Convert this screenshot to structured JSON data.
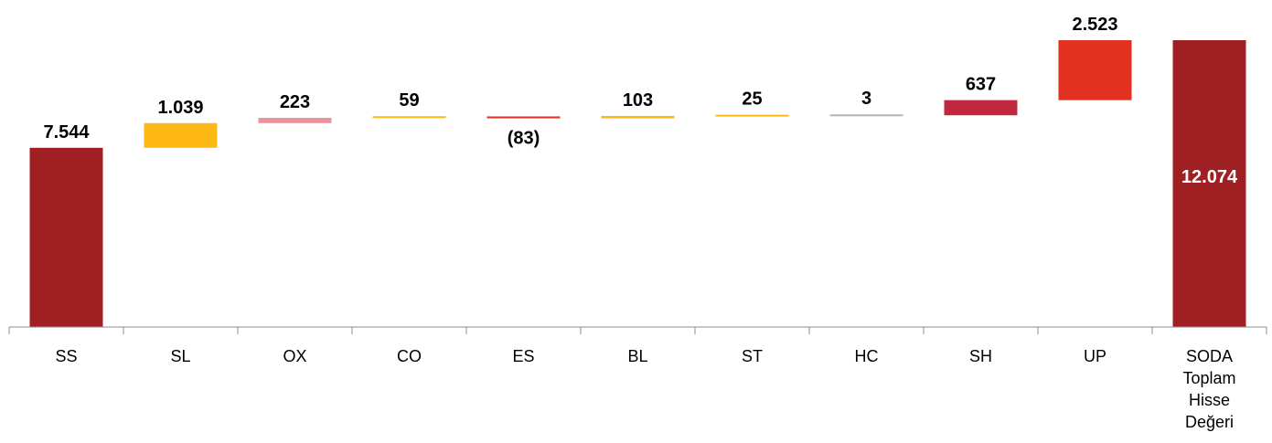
{
  "chart_data": {
    "type": "waterfall",
    "title": "",
    "xlabel": "",
    "ylabel": "",
    "categories": [
      "SS",
      "SL",
      "OX",
      "CO",
      "ES",
      "BL",
      "ST",
      "HC",
      "SH",
      "UP",
      [
        "SODA",
        "Toplam",
        "Hisse",
        "Değeri"
      ]
    ],
    "values": [
      7544,
      1039,
      223,
      59,
      -83,
      103,
      25,
      3,
      637,
      2523,
      12074
    ],
    "value_labels": [
      "7.544",
      "1.039",
      "223",
      "59",
      "(83)",
      "103",
      "25",
      "3",
      "637",
      "2.523",
      "12.074"
    ],
    "is_total": [
      true,
      false,
      false,
      false,
      false,
      false,
      false,
      false,
      false,
      false,
      true
    ],
    "colors": [
      "#a01f22",
      "#fdb813",
      "#e9939b",
      "#fdb813",
      "#de3b2a",
      "#fdb813",
      "#fdb813",
      "#b3b3b3",
      "#c1273f",
      "#e2311f",
      "#a01f22"
    ],
    "ylim": [
      0,
      12074
    ],
    "grid": false,
    "legend": "none"
  }
}
